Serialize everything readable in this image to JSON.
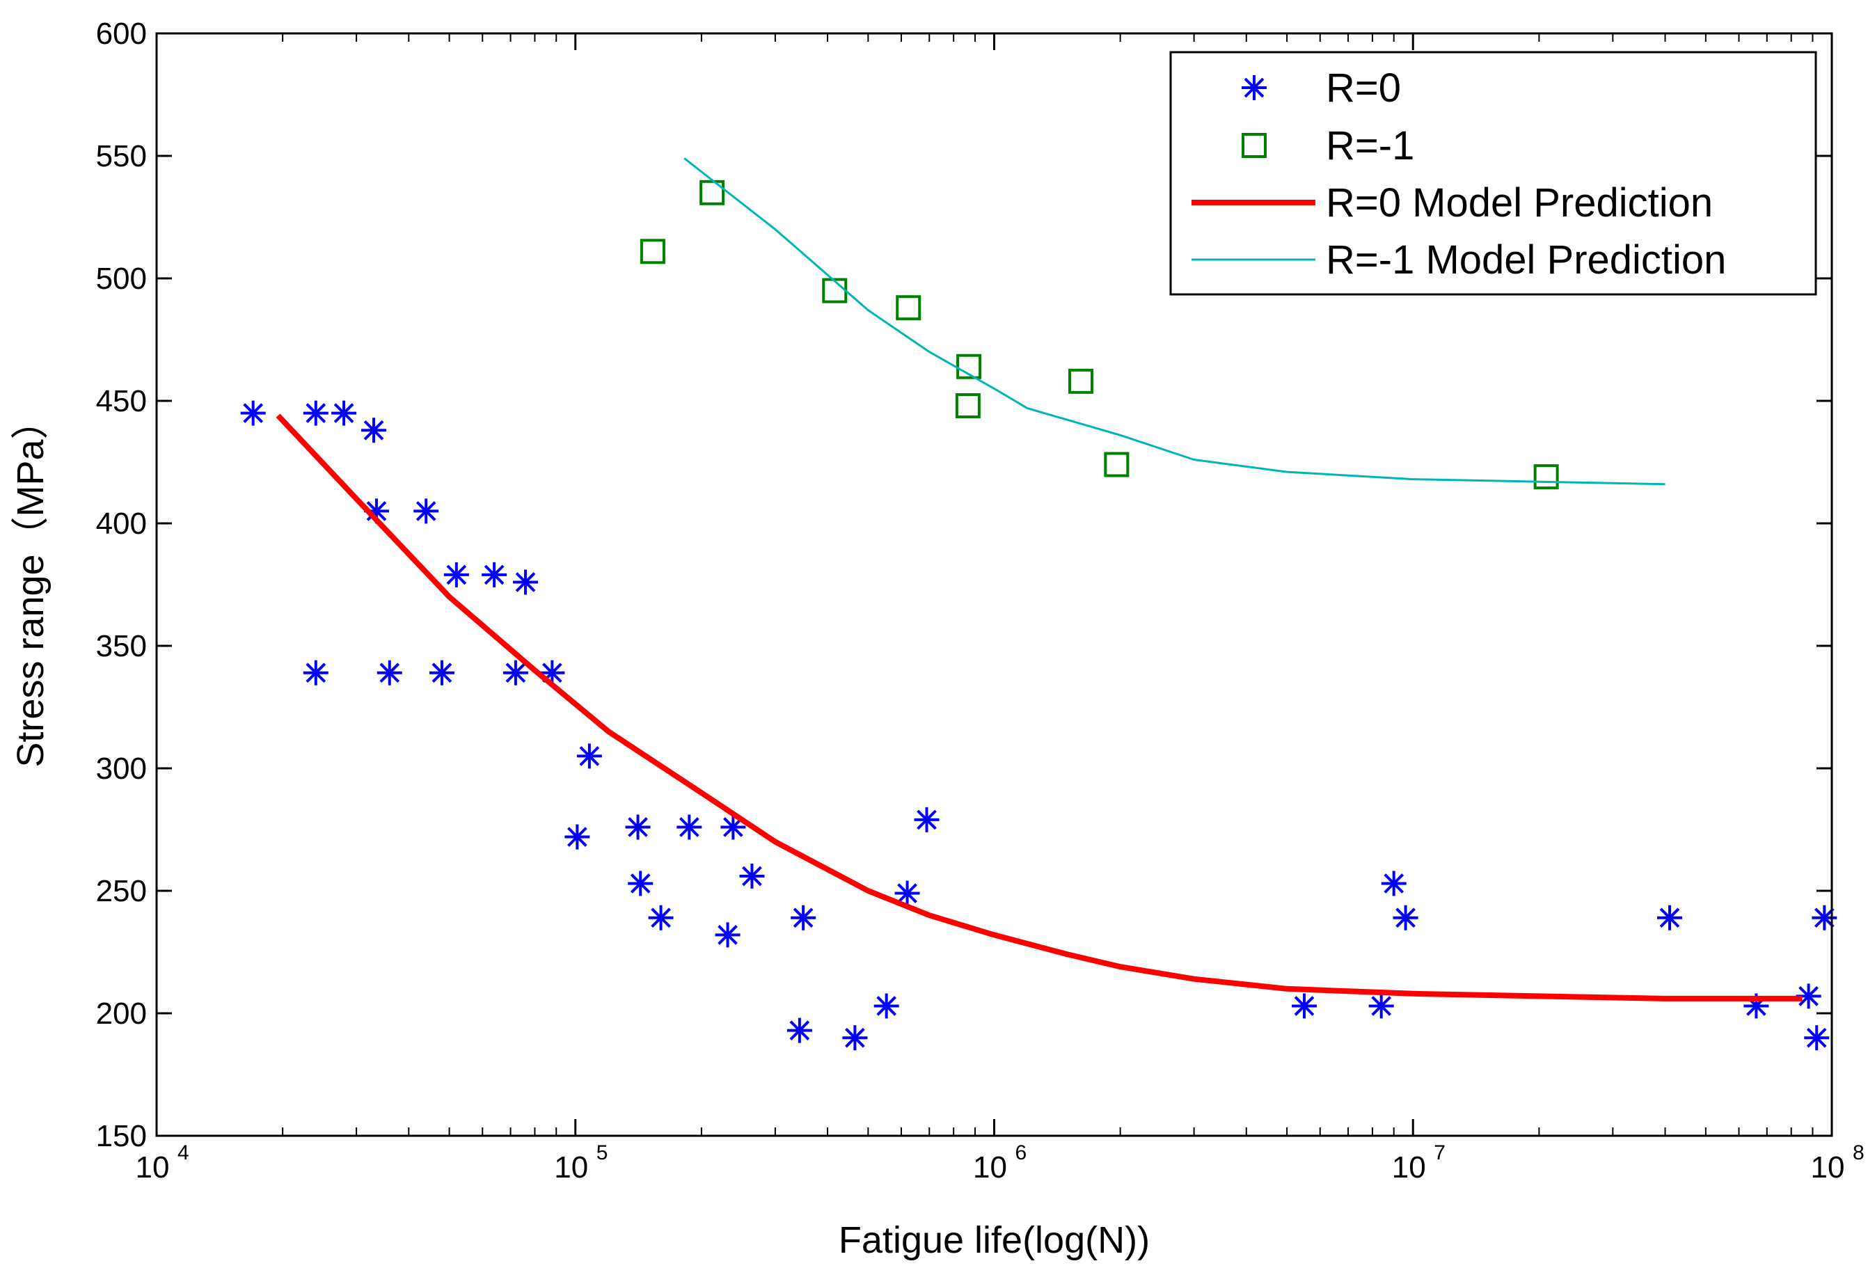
{
  "chart_data": {
    "type": "scatter",
    "title": "",
    "xlabel": "Fatigue life(log(N))",
    "ylabel": "Stress range（MPa）",
    "xscale": "log",
    "xlim": [
      10000,
      100000000
    ],
    "ylim": [
      150,
      600
    ],
    "grid": false,
    "legend_position": "top-right",
    "x_ticks": [
      {
        "base": "10",
        "exp": "4",
        "value": 10000
      },
      {
        "base": "10",
        "exp": "5",
        "value": 100000
      },
      {
        "base": "10",
        "exp": "6",
        "value": 1000000
      },
      {
        "base": "10",
        "exp": "7",
        "value": 10000000
      },
      {
        "base": "10",
        "exp": "8",
        "value": 100000000
      }
    ],
    "y_ticks": [
      "150",
      "200",
      "250",
      "300",
      "350",
      "400",
      "450",
      "500",
      "550",
      "600"
    ],
    "series": [
      {
        "name": "R=0",
        "kind": "markers",
        "marker": "asterisk",
        "color": "#0000ff",
        "points": [
          [
            17000,
            445
          ],
          [
            24000,
            445
          ],
          [
            28000,
            445
          ],
          [
            33000,
            438
          ],
          [
            33500,
            405
          ],
          [
            44000,
            405
          ],
          [
            52000,
            379
          ],
          [
            64000,
            379
          ],
          [
            76000,
            376
          ],
          [
            24000,
            339
          ],
          [
            36000,
            339
          ],
          [
            48000,
            339
          ],
          [
            72000,
            339
          ],
          [
            88000,
            339
          ],
          [
            108000,
            305
          ],
          [
            101000,
            272
          ],
          [
            141000,
            276
          ],
          [
            187000,
            276
          ],
          [
            238000,
            276
          ],
          [
            143000,
            253
          ],
          [
            160000,
            239
          ],
          [
            264000,
            256
          ],
          [
            231000,
            232
          ],
          [
            350000,
            239
          ],
          [
            343000,
            193
          ],
          [
            465000,
            190
          ],
          [
            553000,
            203
          ],
          [
            620000,
            249
          ],
          [
            690000,
            279
          ],
          [
            5500000,
            203
          ],
          [
            8400000,
            203
          ],
          [
            9000000,
            253
          ],
          [
            9600000,
            239
          ],
          [
            41000000,
            239
          ],
          [
            66000000,
            203
          ],
          [
            88000000,
            207
          ],
          [
            92000000,
            190
          ],
          [
            96000000,
            239
          ]
        ]
      },
      {
        "name": "R=-1",
        "kind": "markers",
        "marker": "square",
        "color": "#008000",
        "points": [
          [
            153000,
            511
          ],
          [
            212000,
            535
          ],
          [
            416000,
            495
          ],
          [
            624000,
            488
          ],
          [
            870000,
            464
          ],
          [
            866000,
            448
          ],
          [
            1610000,
            458
          ],
          [
            1960000,
            424
          ],
          [
            20800000,
            419
          ]
        ]
      },
      {
        "name": "R=0 Model Prediction",
        "kind": "line",
        "color": "#ff0000",
        "points": [
          [
            19500,
            444
          ],
          [
            30000,
            410
          ],
          [
            50000,
            370
          ],
          [
            80000,
            340
          ],
          [
            120000,
            315
          ],
          [
            200000,
            290
          ],
          [
            300000,
            270
          ],
          [
            500000,
            250
          ],
          [
            700000,
            240
          ],
          [
            1000000,
            232
          ],
          [
            1500000,
            224
          ],
          [
            2000000,
            219
          ],
          [
            3000000,
            214
          ],
          [
            5000000,
            210
          ],
          [
            10000000,
            208
          ],
          [
            20000000,
            207
          ],
          [
            40000000,
            206
          ],
          [
            85000000,
            206
          ]
        ]
      },
      {
        "name": "R=-1 Model Prediction",
        "kind": "line",
        "color": "#00b5b5",
        "points": [
          [
            182000,
            549
          ],
          [
            300000,
            520
          ],
          [
            500000,
            487
          ],
          [
            700000,
            470
          ],
          [
            1000000,
            455
          ],
          [
            1200000,
            447
          ],
          [
            2000000,
            436
          ],
          [
            3000000,
            426
          ],
          [
            5000000,
            421
          ],
          [
            10000000,
            418
          ],
          [
            20000000,
            417
          ],
          [
            40000000,
            416
          ]
        ]
      }
    ]
  }
}
